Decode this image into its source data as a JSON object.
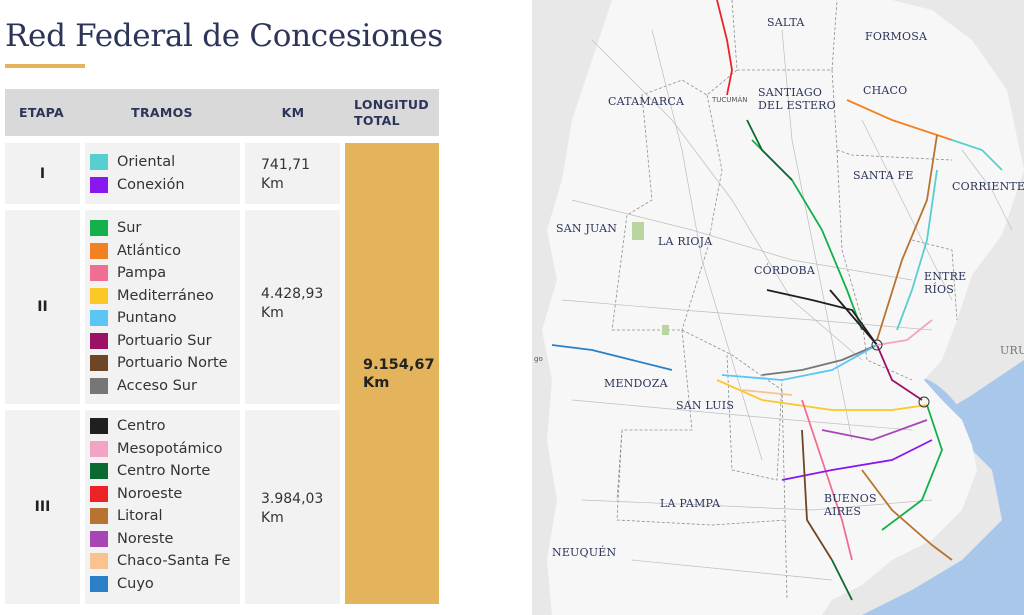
{
  "title": "Red Federal de Concesiones",
  "table": {
    "headers": {
      "etapa": "ETAPA",
      "tramos": "TRAMOS",
      "km": "KM",
      "total_line1": "LONGITUD",
      "total_line2": "TOTAL"
    },
    "rows": [
      {
        "etapa": "I",
        "km_value": "741,71",
        "km_unit": "Km",
        "tramos": [
          {
            "name": "Oriental",
            "color": "#57cfcf"
          },
          {
            "name": "Conexión",
            "color": "#8a16f0"
          }
        ]
      },
      {
        "etapa": "II",
        "km_value": "4.428,93",
        "km_unit": "Km",
        "tramos": [
          {
            "name": "Sur",
            "color": "#13b04c"
          },
          {
            "name": "Atlántico",
            "color": "#f28124"
          },
          {
            "name": "Pampa",
            "color": "#f06e92"
          },
          {
            "name": "Mediterráneo",
            "color": "#fbc827"
          },
          {
            "name": "Puntano",
            "color": "#5bc5f3"
          },
          {
            "name": "Portuario Sur",
            "color": "#9b1163"
          },
          {
            "name": "Portuario Norte",
            "color": "#6e4525"
          },
          {
            "name": "Acceso Sur",
            "color": "#767676"
          }
        ]
      },
      {
        "etapa": "III",
        "km_value": "3.984,03",
        "km_unit": "Km",
        "tramos": [
          {
            "name": "Centro",
            "color": "#1f1f1f"
          },
          {
            "name": "Mesopotámico",
            "color": "#f3a4c6"
          },
          {
            "name": "Centro Norte",
            "color": "#0b6a32"
          },
          {
            "name": "Noroeste",
            "color": "#ec2227"
          },
          {
            "name": "Litoral",
            "color": "#b87333"
          },
          {
            "name": "Noreste",
            "color": "#a646b4"
          },
          {
            "name": "Chaco-Santa Fe",
            "color": "#f9c291"
          },
          {
            "name": "Cuyo",
            "color": "#2a7fc7"
          }
        ]
      }
    ],
    "total_value": "9.154,67",
    "total_unit": "Km"
  },
  "map": {
    "provinces": [
      "SALTA",
      "FORMOSA",
      "CATAMARCA",
      "SANTIAGO",
      "DEL ESTERO",
      "CHACO",
      "SANTA FE",
      "CORRIENTES",
      "SAN JUAN",
      "LA RIOJA",
      "CÓRDOBA",
      "ENTRE",
      "RÍOS",
      "MENDOZA",
      "SAN LUIS",
      "LA PAMPA",
      "BUENOS",
      "AIRES",
      "NEUQUÉN",
      "URUG"
    ],
    "cities": [
      "TUCUMÁN",
      "go"
    ]
  }
}
